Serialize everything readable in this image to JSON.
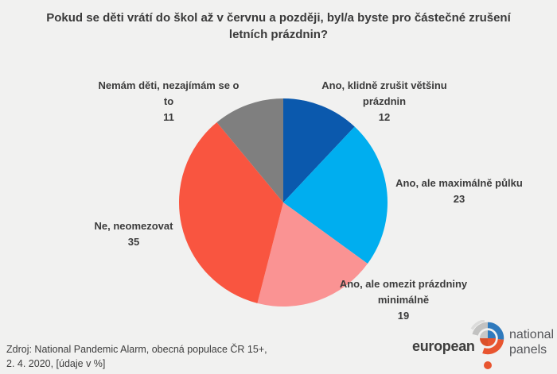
{
  "title": "Pokud se děti vrátí do škol až v červnu a později, byl/a byste pro částečné zrušení letních prázdnin?",
  "chart_data": {
    "type": "pie",
    "title": "Pokud se děti vrátí do škol až v červnu a později, byl/a byste pro částečné zrušení letních prázdnin?",
    "values_unit": "%",
    "start_angle": "12 o'clock",
    "direction": "clockwise",
    "slices": [
      {
        "label": "Ano, klidně zrušit většinu prázdnin",
        "value": 12,
        "color": "#0b59ad"
      },
      {
        "label": "Ano, ale maximálně půlku",
        "value": 23,
        "color": "#00aeef"
      },
      {
        "label": "Ano, ale omezit prázdniny minimálně",
        "value": 19,
        "color": "#fa9393"
      },
      {
        "label": "Ne, neomezovat",
        "value": 35,
        "color": "#f95540"
      },
      {
        "label": "Nemám děti, nezajímám se o to",
        "value": 11,
        "color": "#7f7f7f"
      }
    ]
  },
  "source": {
    "line1": "Zdroj: National Pandemic Alarm, obecná populace ČR 15+,",
    "line2": "2. 4. 2020, [údaje v %]"
  },
  "logo": {
    "word_left": "european",
    "word_right_line1": "national",
    "word_right_line2": "panels",
    "colors": {
      "blue": "#2f7abd",
      "orange": "#e8552f",
      "gray": "#c2c2c1",
      "light_gray": "#dcdcdb",
      "text_dark": "#3e3e3d",
      "text_gray": "#55565a"
    }
  },
  "background_color": "#f1f1f0"
}
